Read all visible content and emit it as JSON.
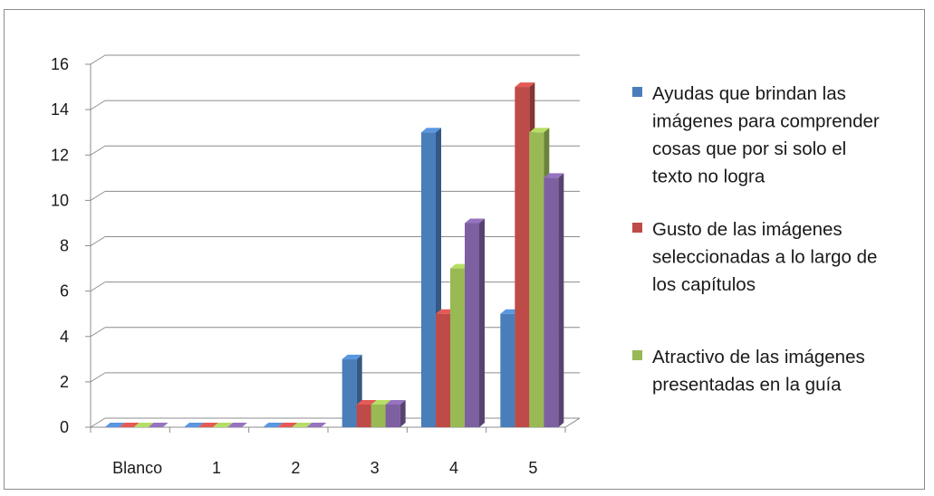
{
  "chart_data": {
    "type": "bar",
    "style": "3d-clustered-column",
    "categories": [
      "Blanco",
      "1",
      "2",
      "3",
      "4",
      "5"
    ],
    "series": [
      {
        "name": "Ayudas que brindan las imágenes para comprender cosas que por si solo el texto no logra",
        "color": "#4a7ebb",
        "values": [
          0,
          0,
          0,
          3,
          13,
          5
        ]
      },
      {
        "name": "Gusto de las imágenes seleccionadas a lo largo de los capítulos",
        "color": "#be4b48",
        "values": [
          0,
          0,
          0,
          1,
          5,
          15
        ]
      },
      {
        "name": "Atractivo de las imágenes presentadas en la guía",
        "color": "#98b954",
        "values": [
          0,
          0,
          0,
          1,
          7,
          13
        ]
      },
      {
        "name": "",
        "color": "#7d60a0",
        "values": [
          0,
          0,
          0,
          1,
          9,
          11
        ]
      }
    ],
    "ylim": [
      0,
      16
    ],
    "yticks": [
      0,
      2,
      4,
      6,
      8,
      10,
      12,
      14,
      16
    ],
    "grid": true,
    "legend_position": "right",
    "title": "",
    "xlabel": "",
    "ylabel": ""
  },
  "legend": {
    "entries": [
      {
        "lines": [
          "Ayudas que brindan las",
          "imágenes para comprender",
          "cosas que por si solo el",
          "texto no logra"
        ],
        "color": "#4a7ebb"
      },
      {
        "lines": [
          "Gusto de las imágenes",
          "seleccionadas a lo largo de",
          "los capítulos"
        ],
        "color": "#be4b48"
      },
      {
        "lines": [
          "Atractivo de las imágenes",
          "presentadas en la guía"
        ],
        "color": "#98b954"
      }
    ]
  }
}
